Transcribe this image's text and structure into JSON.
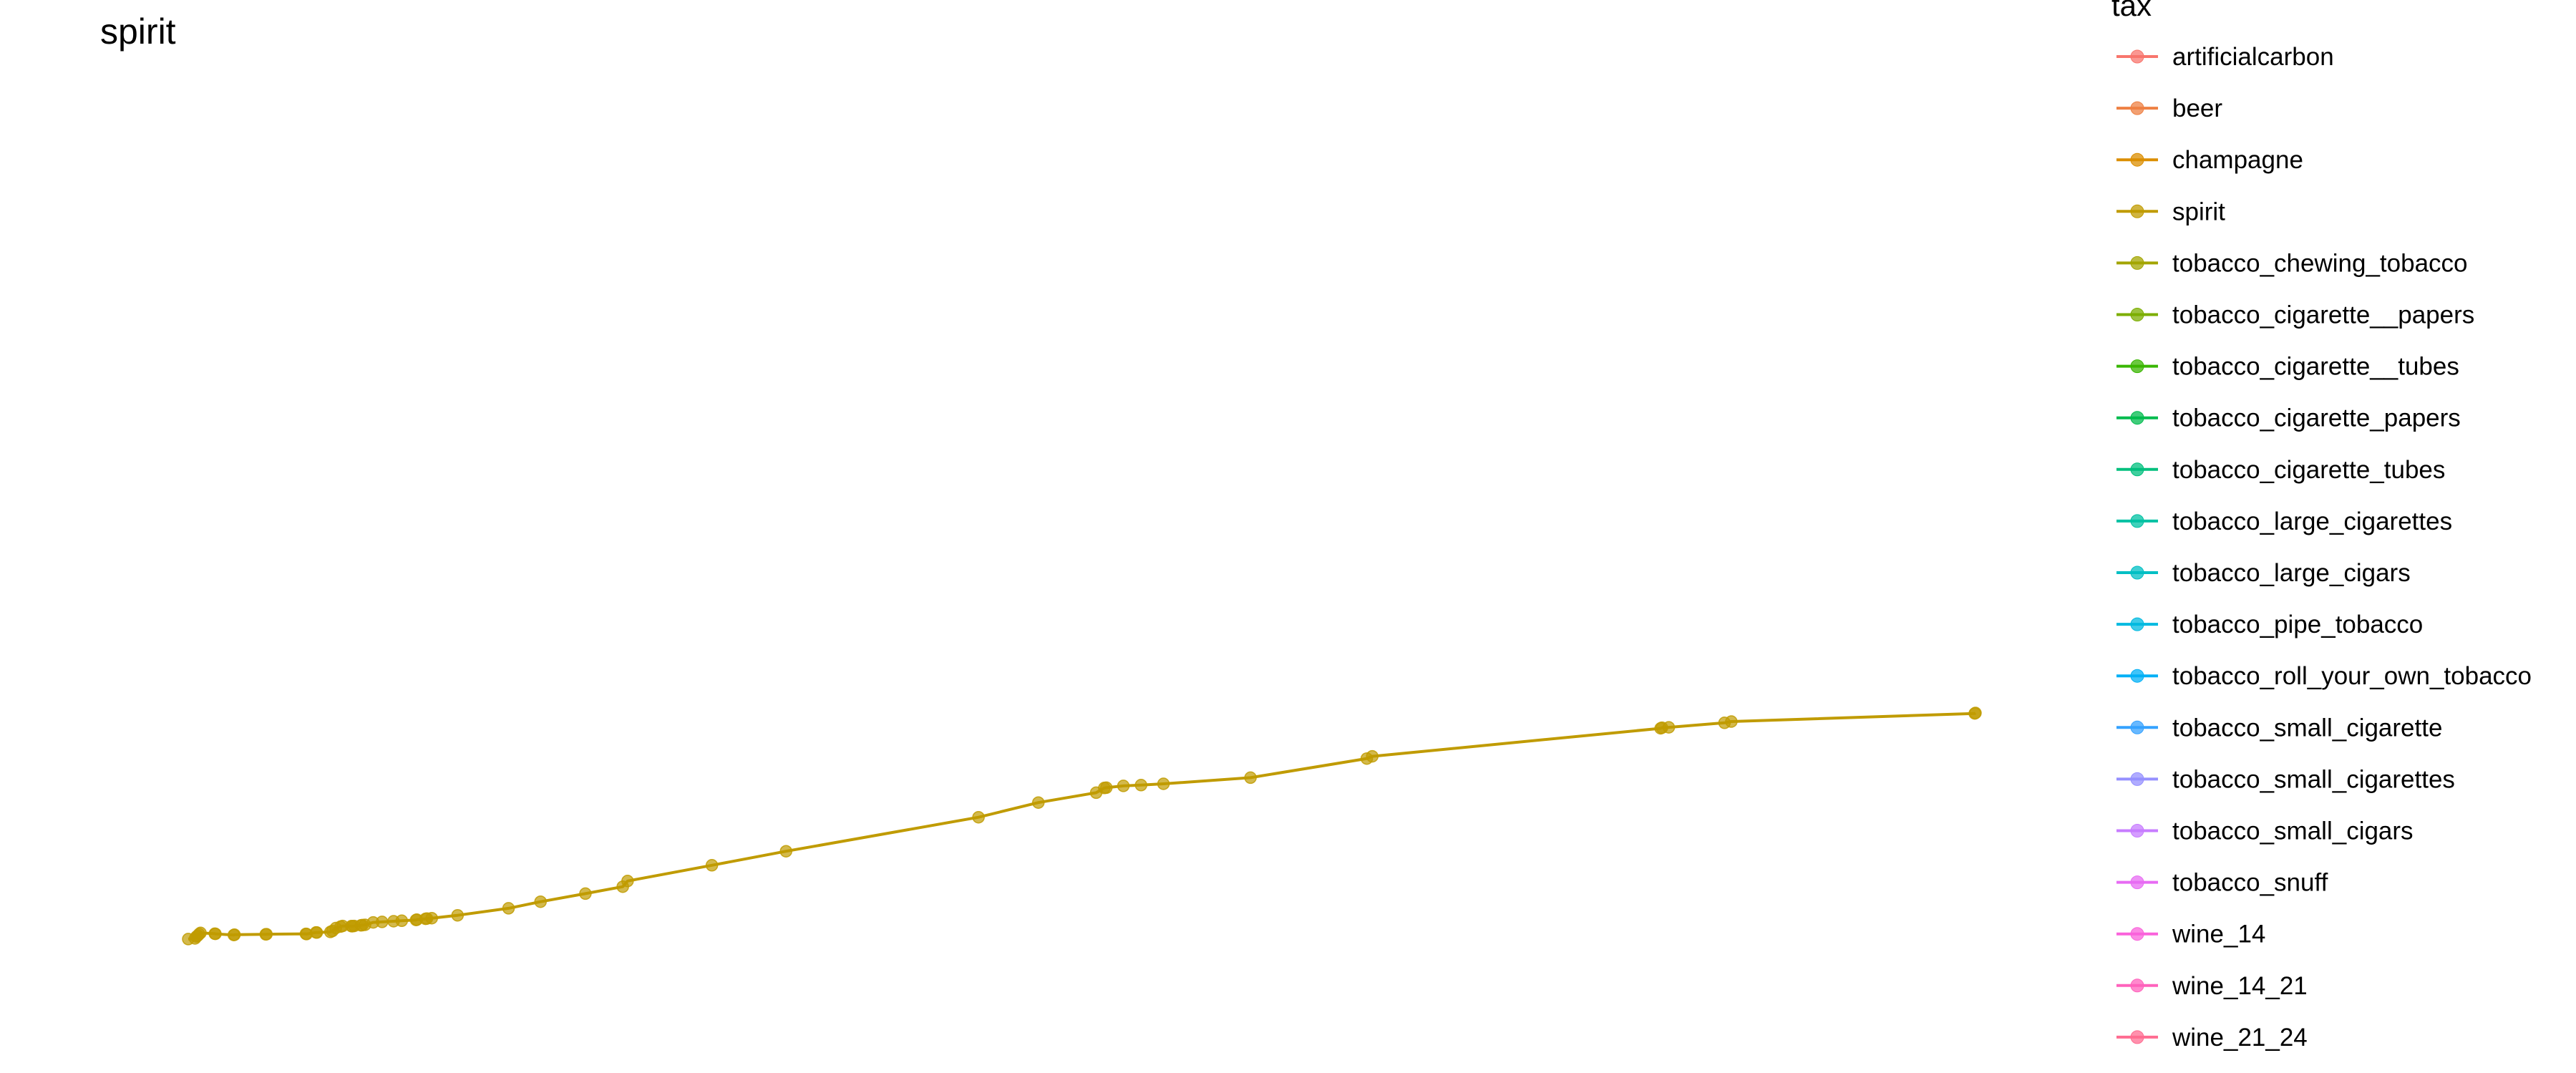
{
  "chart_data": {
    "type": "line",
    "title": "spirit",
    "xlabel": "",
    "ylabel": "",
    "grid": false,
    "axes_visible": false,
    "legend_placement": "right",
    "legend": {
      "title": "tax",
      "entries": [
        {
          "label": "artificialcarbon",
          "color": "#F8766D"
        },
        {
          "label": "beer",
          "color": "#EE8043"
        },
        {
          "label": "champagne",
          "color": "#DB8E00"
        },
        {
          "label": "spirit",
          "color": "#C09B00"
        },
        {
          "label": "tobacco_chewing_tobacco",
          "color": "#A3A500"
        },
        {
          "label": "tobacco_cigarette__papers",
          "color": "#7CAE00"
        },
        {
          "label": "tobacco_cigarette__tubes",
          "color": "#39B600"
        },
        {
          "label": "tobacco_cigarette_papers",
          "color": "#00BB4E"
        },
        {
          "label": "tobacco_cigarette_tubes",
          "color": "#00BF7D"
        },
        {
          "label": "tobacco_large_cigarettes",
          "color": "#00C1A3"
        },
        {
          "label": "tobacco_large_cigars",
          "color": "#00BFC4"
        },
        {
          "label": "tobacco_pipe_tobacco",
          "color": "#00BAE0"
        },
        {
          "label": "tobacco_roll_your_own_tobacco",
          "color": "#00B0F6"
        },
        {
          "label": "tobacco_small_cigarette",
          "color": "#35A2FF"
        },
        {
          "label": "tobacco_small_cigarettes",
          "color": "#9590FF"
        },
        {
          "label": "tobacco_small_cigars",
          "color": "#C77CFF"
        },
        {
          "label": "tobacco_snuff",
          "color": "#E76BF3"
        },
        {
          "label": "wine_14",
          "color": "#FA62DB"
        },
        {
          "label": "wine_14_21",
          "color": "#FF62BC"
        },
        {
          "label": "wine_21_24",
          "color": "#FF6C91"
        }
      ]
    },
    "series": [
      {
        "name": "spirit",
        "color": "#C09B00",
        "x": [
          0,
          10,
          12,
          14,
          16,
          18,
          39,
          40,
          67,
          68,
          114,
          115,
          173,
          174,
          188,
          189,
          209,
          212,
          217,
          224,
          227,
          240,
          241,
          244,
          254,
          256,
          260,
          272,
          285,
          302,
          314,
          335,
          336,
          349,
          351,
          358,
          396,
          471,
          518,
          584,
          639,
          646,
          770,
          879,
          1162,
          1250,
          1335,
          1347,
          1350,
          1375,
          1401,
          1434,
          1562,
          1733,
          1741,
          2165,
          2167,
          2177,
          2259,
          2269,
          2627,
          2628
        ],
        "y": [
          0.5,
          0.9,
          2.0,
          2.6,
          3.6,
          4.3,
          3.8,
          3.7,
          3.0,
          3.2,
          3.4,
          3.5,
          3.7,
          3.6,
          4.6,
          4.5,
          4.9,
          5.5,
          7.3,
          8.2,
          8.6,
          8.5,
          8.4,
          8.6,
          9.0,
          9.1,
          9.3,
          10.8,
          11.1,
          11.5,
          11.8,
          12.3,
          12.5,
          13.0,
          13.2,
          13.4,
          15.2,
          19.5,
          23.6,
          28.6,
          32.9,
          36.4,
          46.1,
          54.8,
          75.8,
          84.9,
          91.0,
          93.9,
          94.1,
          95.2,
          95.7,
          96.5,
          100.3,
          112.1,
          113.5,
          130.8,
          131.2,
          131.4,
          134.2,
          135.0,
          140.0,
          140.3
        ]
      }
    ]
  }
}
